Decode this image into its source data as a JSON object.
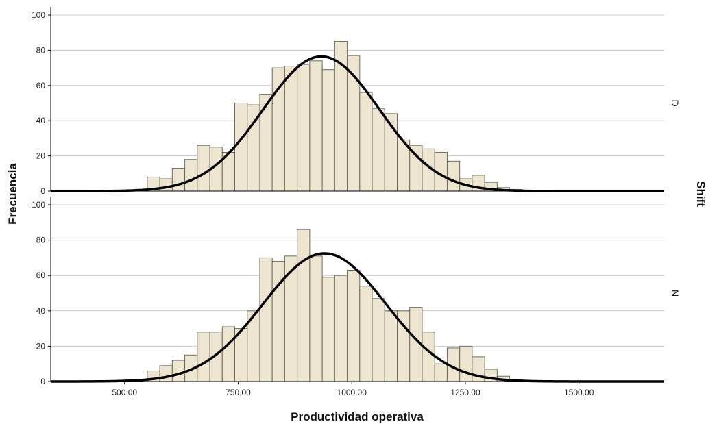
{
  "chart_data": {
    "type": "bar",
    "xlabel": "Productividad operativa",
    "ylabel": "Frecuencia",
    "facet_label": "Shift",
    "x_range": [
      337.5,
      1687.5
    ],
    "x_ticks": [
      500,
      750,
      1000,
      1250,
      1500
    ],
    "x_tick_labels": [
      "500.00",
      "750.00",
      "1000.00",
      "1250.00",
      "1500.00"
    ],
    "ylim": [
      0,
      100
    ],
    "y_ticks": [
      0,
      20,
      40,
      60,
      80,
      100
    ],
    "y_tick_labels": [
      "0",
      "20",
      "40",
      "60",
      "80",
      "100"
    ],
    "bin_width": 27.5,
    "grid": true,
    "panels": [
      {
        "name": "D",
        "bins": [
          {
            "x0": 522.5,
            "count": 1
          },
          {
            "x0": 550,
            "count": 8
          },
          {
            "x0": 577.5,
            "count": 7
          },
          {
            "x0": 605,
            "count": 13
          },
          {
            "x0": 632.5,
            "count": 18
          },
          {
            "x0": 660,
            "count": 26
          },
          {
            "x0": 687.5,
            "count": 25
          },
          {
            "x0": 715,
            "count": 22
          },
          {
            "x0": 742.5,
            "count": 50
          },
          {
            "x0": 770,
            "count": 49
          },
          {
            "x0": 797.5,
            "count": 55
          },
          {
            "x0": 825,
            "count": 70
          },
          {
            "x0": 852.5,
            "count": 71
          },
          {
            "x0": 880,
            "count": 72
          },
          {
            "x0": 907.5,
            "count": 74
          },
          {
            "x0": 935,
            "count": 69
          },
          {
            "x0": 962.5,
            "count": 85
          },
          {
            "x0": 990,
            "count": 77
          },
          {
            "x0": 1017.5,
            "count": 56
          },
          {
            "x0": 1045,
            "count": 47
          },
          {
            "x0": 1072.5,
            "count": 44
          },
          {
            "x0": 1100,
            "count": 29
          },
          {
            "x0": 1127.5,
            "count": 26
          },
          {
            "x0": 1155,
            "count": 24
          },
          {
            "x0": 1182.5,
            "count": 22
          },
          {
            "x0": 1210,
            "count": 17
          },
          {
            "x0": 1237.5,
            "count": 7
          },
          {
            "x0": 1265,
            "count": 9
          },
          {
            "x0": 1292.5,
            "count": 5
          },
          {
            "x0": 1320,
            "count": 2
          },
          {
            "x0": 1347.5,
            "count": 1
          }
        ],
        "normal_curve": {
          "mean": 933,
          "sd": 128,
          "peak": 76.5
        }
      },
      {
        "name": "N",
        "bins": [
          {
            "x0": 550,
            "count": 6
          },
          {
            "x0": 577.5,
            "count": 9
          },
          {
            "x0": 605,
            "count": 12
          },
          {
            "x0": 632.5,
            "count": 15
          },
          {
            "x0": 660,
            "count": 28
          },
          {
            "x0": 687.5,
            "count": 28
          },
          {
            "x0": 715,
            "count": 31
          },
          {
            "x0": 742.5,
            "count": 30
          },
          {
            "x0": 770,
            "count": 40
          },
          {
            "x0": 797.5,
            "count": 70
          },
          {
            "x0": 825,
            "count": 68
          },
          {
            "x0": 852.5,
            "count": 71
          },
          {
            "x0": 880,
            "count": 86
          },
          {
            "x0": 907.5,
            "count": 71
          },
          {
            "x0": 935,
            "count": 59
          },
          {
            "x0": 962.5,
            "count": 60
          },
          {
            "x0": 990,
            "count": 63
          },
          {
            "x0": 1017.5,
            "count": 54
          },
          {
            "x0": 1045,
            "count": 47
          },
          {
            "x0": 1072.5,
            "count": 40
          },
          {
            "x0": 1100,
            "count": 40
          },
          {
            "x0": 1127.5,
            "count": 42
          },
          {
            "x0": 1155,
            "count": 28
          },
          {
            "x0": 1182.5,
            "count": 10
          },
          {
            "x0": 1210,
            "count": 19
          },
          {
            "x0": 1237.5,
            "count": 20
          },
          {
            "x0": 1265,
            "count": 14
          },
          {
            "x0": 1292.5,
            "count": 7
          },
          {
            "x0": 1320,
            "count": 3
          },
          {
            "x0": 1347.5,
            "count": 1
          }
        ],
        "normal_curve": {
          "mean": 940,
          "sd": 135,
          "peak": 72.5
        }
      }
    ]
  }
}
